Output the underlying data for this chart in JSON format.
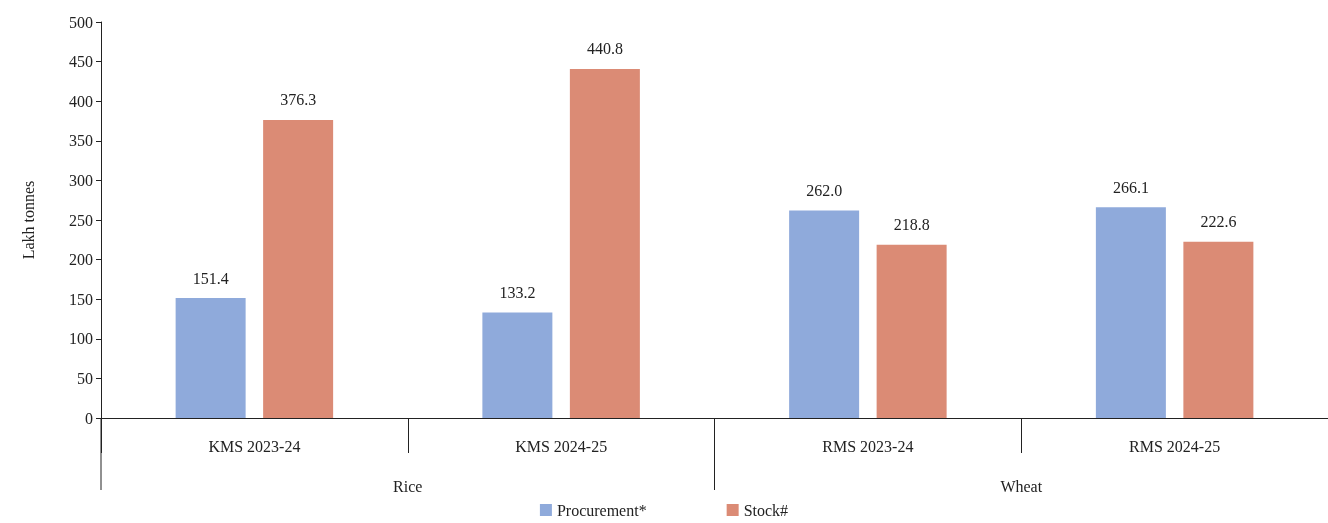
{
  "chart_data": {
    "type": "bar",
    "ylabel": "Lakh tonnes",
    "categories": [
      "KMS 2023-24",
      "KMS 2024-25",
      "RMS 2023-24",
      "RMS 2024-25"
    ],
    "series": [
      {
        "name": "Procurement*",
        "color": "#8faadb",
        "values": [
          151.4,
          133.2,
          262.0,
          266.1
        ],
        "value_labels": [
          "151.4",
          "133.2",
          "262.0",
          "266.1"
        ]
      },
      {
        "name": "Stock#",
        "color": "#db8b75",
        "values": [
          376.3,
          440.8,
          218.8,
          222.6
        ],
        "value_labels": [
          "376.3",
          "440.8",
          "218.8",
          "222.6"
        ]
      }
    ],
    "annotations": [
      "Rice",
      "Wheat"
    ],
    "ylim": [
      0,
      500
    ],
    "yticks": [
      0,
      50,
      100,
      150,
      200,
      250,
      300,
      350,
      400,
      450,
      500
    ],
    "grid": false,
    "legend": "bottom"
  }
}
